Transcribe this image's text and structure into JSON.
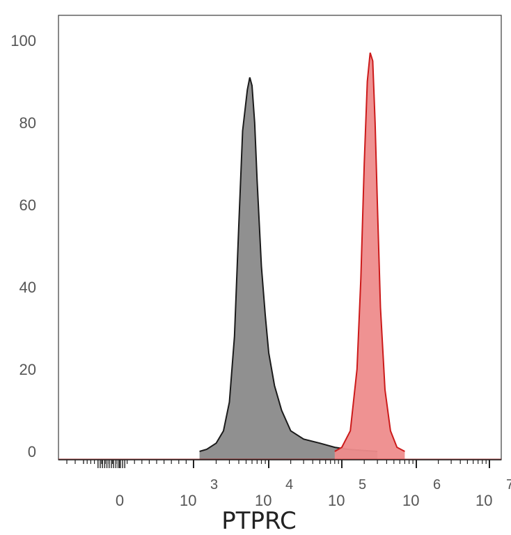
{
  "chart_data": {
    "type": "area",
    "title": "",
    "xlabel": "PTPRC",
    "ylabel": "",
    "x_scale": "biexponential",
    "ylim": [
      0,
      105
    ],
    "y_ticks": [
      "0",
      "20",
      "40",
      "60",
      "80",
      "100"
    ],
    "x_ticks": [
      {
        "value": 0,
        "label": "0"
      },
      {
        "value": 1000,
        "base": "10",
        "exp": "3"
      },
      {
        "value": 10000,
        "base": "10",
        "exp": "4"
      },
      {
        "value": 100000,
        "base": "10",
        "exp": "5"
      },
      {
        "value": 1000000,
        "base": "10",
        "exp": "6"
      },
      {
        "value": 10000000,
        "base": "10",
        "exp": "7"
      }
    ],
    "grid": false,
    "series": [
      {
        "color": "#1a1a1a",
        "fill": "#8a8a8a",
        "points": [
          [
            1200,
            0
          ],
          [
            1500,
            0.5
          ],
          [
            2000,
            2
          ],
          [
            2500,
            5
          ],
          [
            3000,
            12
          ],
          [
            3500,
            28
          ],
          [
            4000,
            55
          ],
          [
            4500,
            78
          ],
          [
            5200,
            88
          ],
          [
            5600,
            91
          ],
          [
            6000,
            89
          ],
          [
            6500,
            80
          ],
          [
            7000,
            66
          ],
          [
            8000,
            45
          ],
          [
            9000,
            33
          ],
          [
            10000,
            24
          ],
          [
            12000,
            16
          ],
          [
            15000,
            10
          ],
          [
            20000,
            5
          ],
          [
            30000,
            3
          ],
          [
            50000,
            2
          ],
          [
            80000,
            1
          ],
          [
            120000,
            0.5
          ],
          [
            200000,
            0.2
          ],
          [
            300000,
            0
          ]
        ]
      },
      {
        "color": "#cc1a1a",
        "fill": "#ee8c8c",
        "points": [
          [
            80000,
            0
          ],
          [
            100000,
            1
          ],
          [
            130000,
            5
          ],
          [
            160000,
            20
          ],
          [
            180000,
            42
          ],
          [
            200000,
            70
          ],
          [
            220000,
            90
          ],
          [
            240000,
            97
          ],
          [
            260000,
            95
          ],
          [
            280000,
            80
          ],
          [
            300000,
            60
          ],
          [
            330000,
            35
          ],
          [
            380000,
            15
          ],
          [
            450000,
            5
          ],
          [
            550000,
            1
          ],
          [
            700000,
            0
          ]
        ]
      }
    ]
  }
}
